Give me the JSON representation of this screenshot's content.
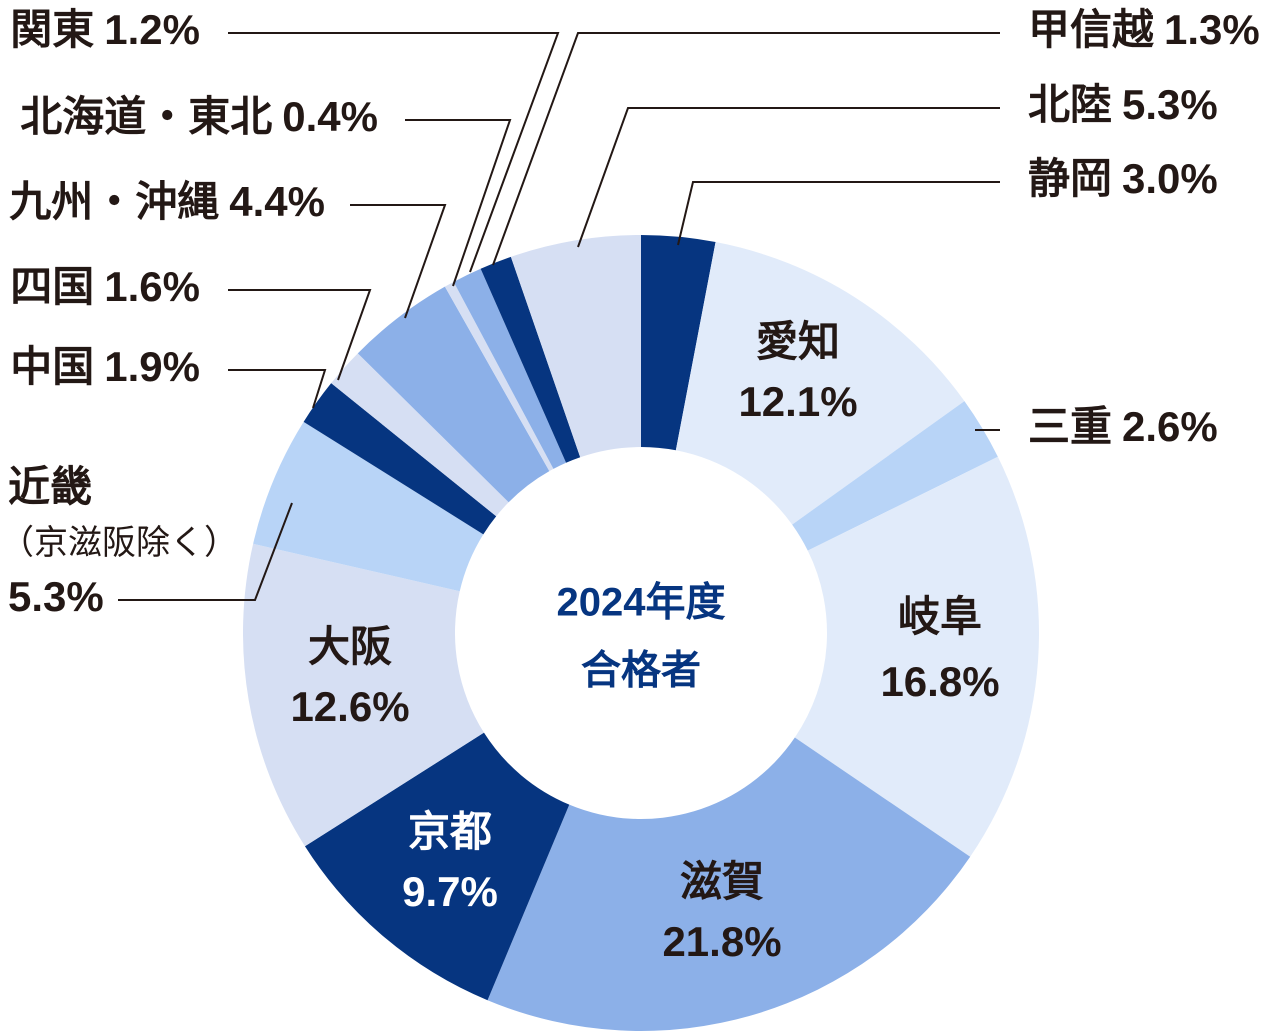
{
  "chart_data": {
    "type": "donut",
    "center_label": [
      "2024年度",
      "合格者"
    ],
    "categories": [
      "静岡",
      "愛知",
      "三重",
      "岐阜",
      "滋賀",
      "京都",
      "大阪",
      "近畿（京滋阪除く）",
      "中国",
      "四国",
      "九州・沖縄",
      "北海道・東北",
      "関東",
      "甲信越",
      "北陸"
    ],
    "values": [
      3.0,
      12.1,
      2.6,
      16.8,
      21.8,
      9.7,
      12.6,
      5.3,
      1.9,
      1.6,
      4.4,
      0.4,
      1.2,
      1.3,
      5.3
    ],
    "value_labels": [
      "3.0%",
      "12.1%",
      "2.6%",
      "16.8%",
      "21.8%",
      "9.7%",
      "12.6%",
      "5.3%",
      "1.9%",
      "1.6%",
      "4.4%",
      "0.4%",
      "1.2%",
      "1.3%",
      "5.3%"
    ],
    "colors": [
      "#063580",
      "#e1ebfa",
      "#b8d4f7",
      "#e1ebfa",
      "#8cb0e8",
      "#063580",
      "#d6dff3",
      "#b8d4f7",
      "#063580",
      "#d6dff3",
      "#8cb0e8",
      "#d6dff3",
      "#8cb0e8",
      "#063580",
      "#d6dff3"
    ]
  }
}
